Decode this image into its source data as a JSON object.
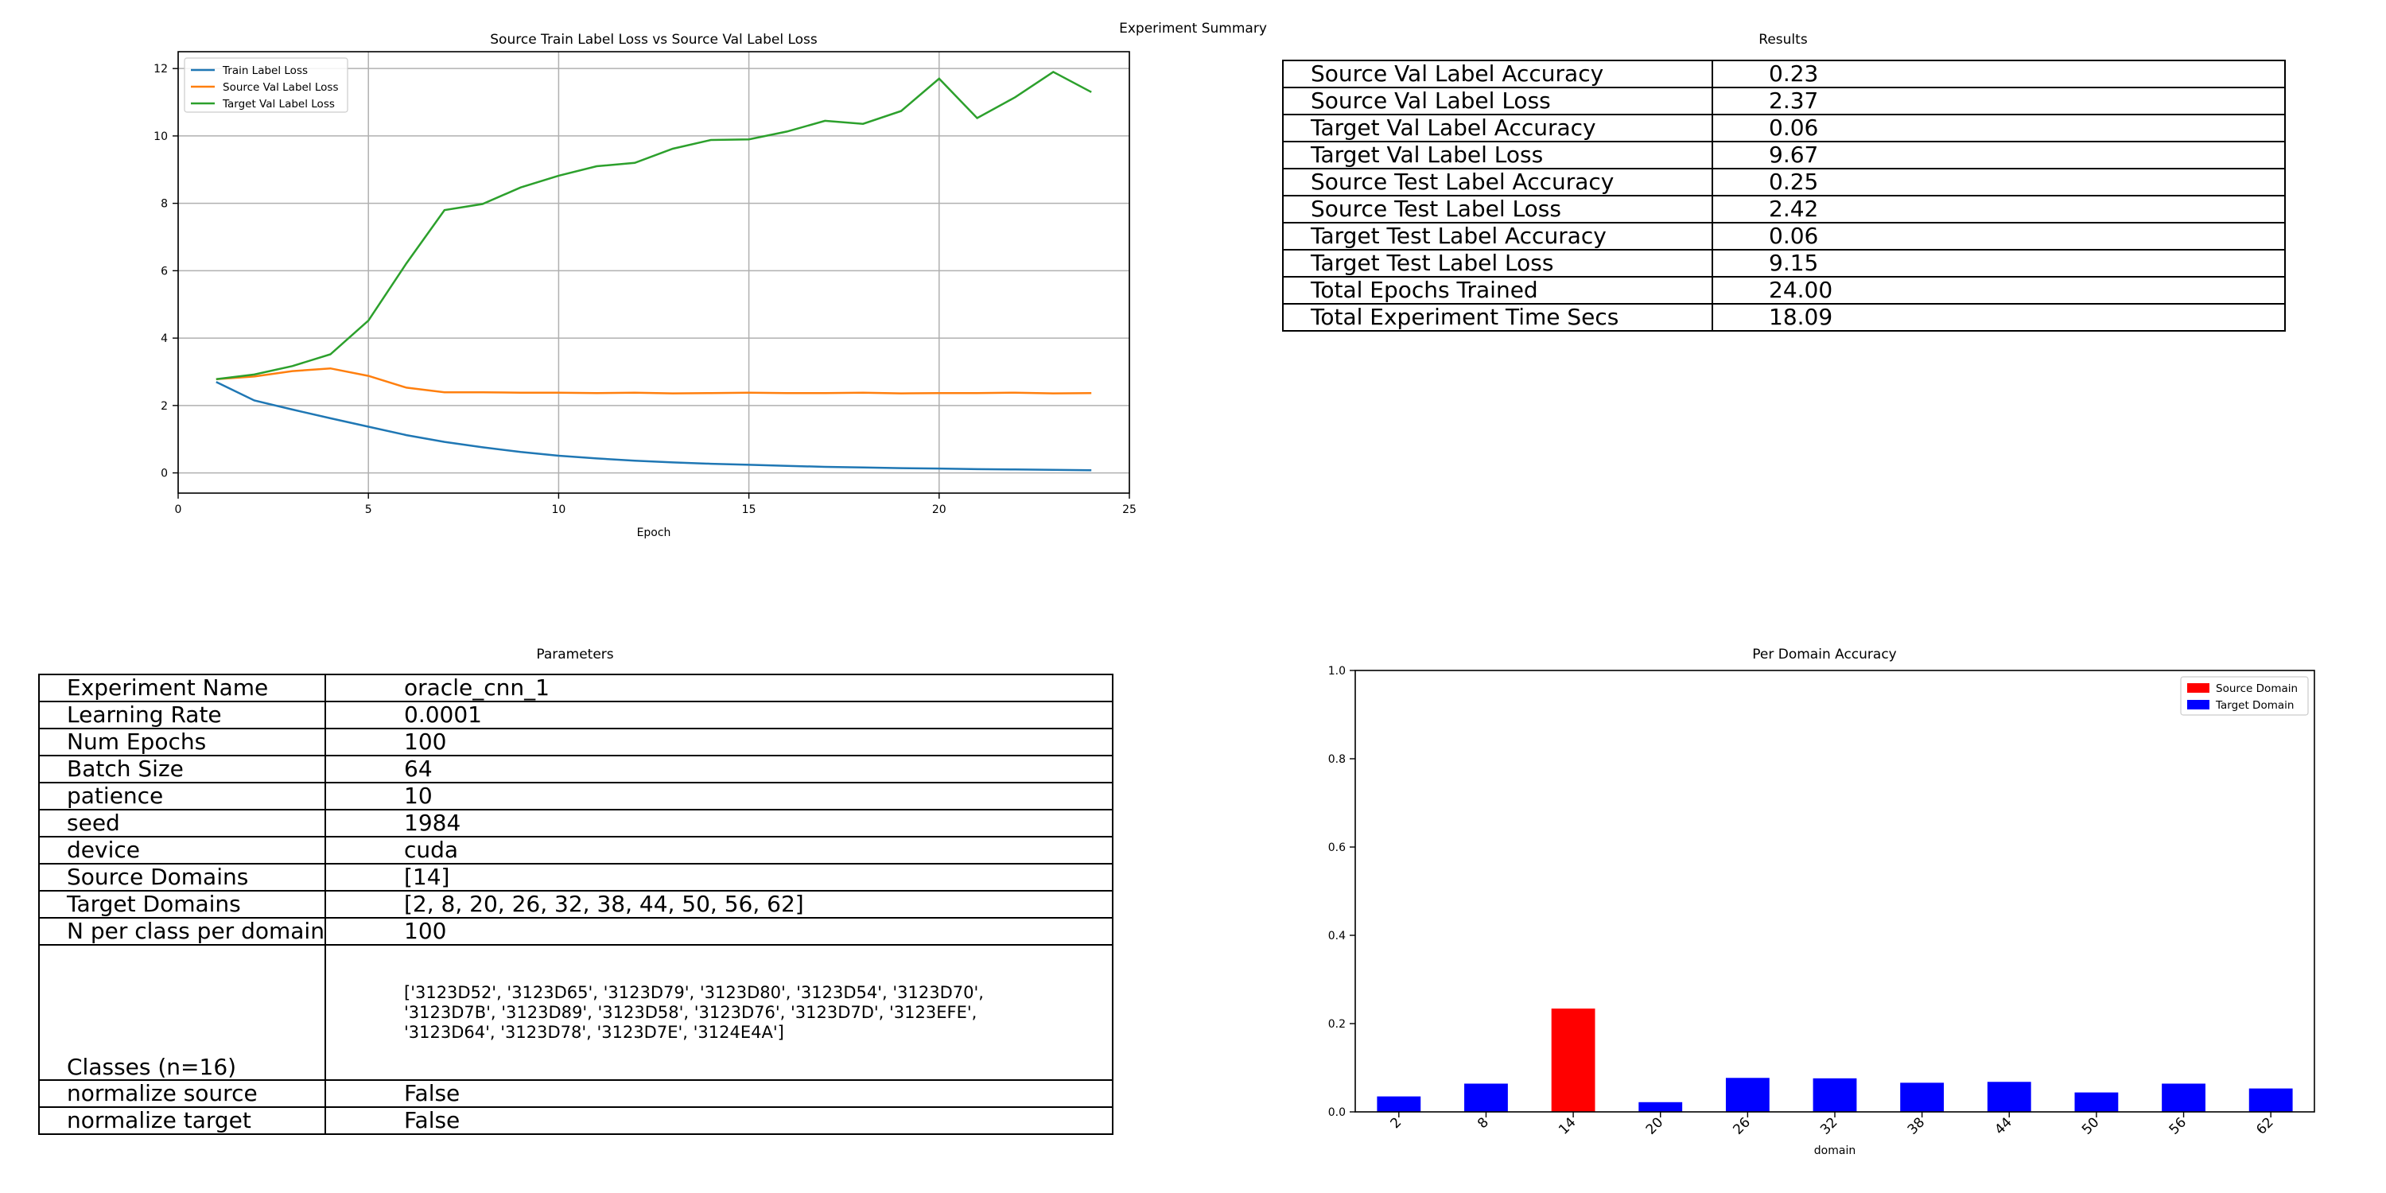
{
  "figure": {
    "title": "Experiment Summary"
  },
  "results": {
    "title": "Results",
    "rows": [
      [
        "Source Val Label Accuracy",
        "0.23"
      ],
      [
        "Source Val Label Loss",
        "2.37"
      ],
      [
        "Target Val Label Accuracy",
        "0.06"
      ],
      [
        "Target Val Label Loss",
        "9.67"
      ],
      [
        "Source Test Label Accuracy",
        "0.25"
      ],
      [
        "Source Test Label Loss",
        "2.42"
      ],
      [
        "Target Test Label Accuracy",
        "0.06"
      ],
      [
        "Target Test Label Loss",
        "9.15"
      ],
      [
        "Total Epochs Trained",
        "24.00"
      ],
      [
        "Total Experiment Time Secs",
        "18.09"
      ]
    ]
  },
  "parameters": {
    "title": "Parameters",
    "rows": [
      [
        "Experiment Name",
        "oracle_cnn_1"
      ],
      [
        "Learning Rate",
        "0.0001"
      ],
      [
        "Num Epochs",
        "100"
      ],
      [
        "Batch Size",
        "64"
      ],
      [
        "patience",
        "10"
      ],
      [
        "seed",
        "1984"
      ],
      [
        "device",
        "cuda"
      ],
      [
        "Source Domains",
        "[14]"
      ],
      [
        "Target Domains",
        "[2, 8, 20, 26, 32, 38, 44, 50, 56, 62]"
      ],
      [
        "N per class per domain",
        "100"
      ],
      [
        "Classes (n=16)",
        "['3123D52', '3123D65', '3123D79', '3123D80', '3123D54', '3123D70',\n'3123D7B', '3123D89', '3123D58', '3123D76', '3123D7D', '3123EFE',\n'3123D64', '3123D78', '3123D7E', '3124E4A']"
      ],
      [
        "normalize source",
        "False"
      ],
      [
        "normalize target",
        "False"
      ]
    ]
  },
  "chart_data": [
    {
      "type": "line",
      "title": "Source Train Label Loss vs Source Val Label Loss",
      "xlabel": "Epoch",
      "ylabel": "",
      "xlim": [
        0,
        25
      ],
      "ylim": [
        -0.6,
        12.5
      ],
      "xticks": [
        0,
        5,
        10,
        15,
        20,
        25
      ],
      "yticks": [
        0,
        2,
        4,
        6,
        8,
        10,
        12
      ],
      "grid": true,
      "legend": "top-left",
      "x": [
        1,
        2,
        3,
        4,
        5,
        6,
        7,
        8,
        9,
        10,
        11,
        12,
        13,
        14,
        15,
        16,
        17,
        18,
        19,
        20,
        21,
        22,
        23,
        24
      ],
      "series": [
        {
          "name": "Train Label Loss",
          "color": "#1f77b4",
          "values": [
            2.7,
            2.15,
            1.88,
            1.62,
            1.37,
            1.12,
            0.92,
            0.76,
            0.62,
            0.51,
            0.43,
            0.36,
            0.31,
            0.27,
            0.24,
            0.21,
            0.18,
            0.16,
            0.14,
            0.13,
            0.11,
            0.1,
            0.09,
            0.08
          ]
        },
        {
          "name": "Source Val Label Loss",
          "color": "#ff7f0e",
          "values": [
            2.78,
            2.86,
            3.02,
            3.1,
            2.88,
            2.53,
            2.39,
            2.39,
            2.38,
            2.38,
            2.37,
            2.38,
            2.36,
            2.37,
            2.38,
            2.37,
            2.37,
            2.38,
            2.36,
            2.37,
            2.37,
            2.38,
            2.36,
            2.37
          ]
        },
        {
          "name": "Target Val Label Loss",
          "color": "#2ca02c",
          "values": [
            2.78,
            2.92,
            3.17,
            3.52,
            4.52,
            6.22,
            7.8,
            7.98,
            8.47,
            8.82,
            9.1,
            9.2,
            9.62,
            9.88,
            9.9,
            10.13,
            10.45,
            10.36,
            10.74,
            11.7,
            10.53,
            11.15,
            11.9,
            11.3
          ]
        }
      ]
    },
    {
      "type": "bar",
      "title": "Per Domain Accuracy",
      "xlabel": "domain",
      "ylabel": "",
      "ylim": [
        0,
        1.0
      ],
      "yticks": [
        0.0,
        0.2,
        0.4,
        0.6,
        0.8,
        1.0
      ],
      "legend": "top-right",
      "categories": [
        "2",
        "8",
        "14",
        "20",
        "26",
        "32",
        "38",
        "44",
        "50",
        "56",
        "62"
      ],
      "values": [
        0.035,
        0.064,
        0.234,
        0.022,
        0.077,
        0.076,
        0.066,
        0.068,
        0.044,
        0.064,
        0.053
      ],
      "domain_type": [
        "target",
        "target",
        "source",
        "target",
        "target",
        "target",
        "target",
        "target",
        "target",
        "target",
        "target"
      ],
      "series": [
        {
          "name": "Source Domain",
          "color": "#ff0000"
        },
        {
          "name": "Target Domain",
          "color": "#0000ff"
        }
      ]
    }
  ]
}
